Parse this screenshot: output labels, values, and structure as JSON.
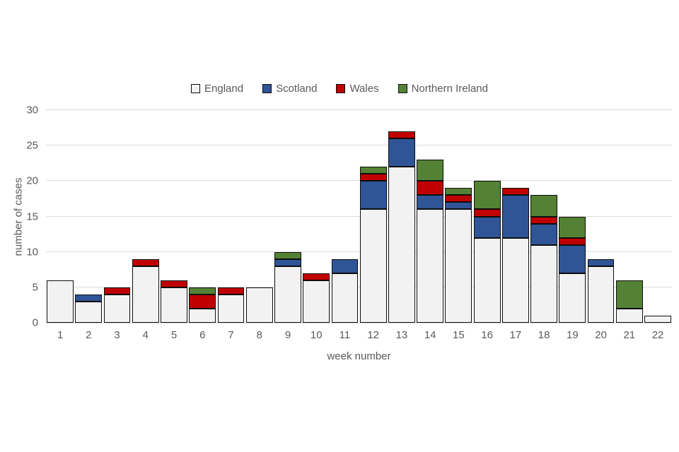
{
  "colors": {
    "text": "#595959",
    "gridline": "#DCDCDC",
    "bar_border": "#0d0d0d",
    "background": "#ffffff",
    "england": "#F2F2F2",
    "scotland": "#2F5597",
    "wales": "#C00000",
    "northern_ireland": "#548235"
  },
  "chart_data": {
    "type": "bar",
    "stacked": true,
    "title": "",
    "xlabel": "week number",
    "ylabel": "number of cases",
    "ylim": [
      0,
      30
    ],
    "yticks": [
      0,
      5,
      10,
      15,
      20,
      25,
      30
    ],
    "grid": true,
    "legend_position": "top",
    "categories": [
      "1",
      "2",
      "3",
      "4",
      "5",
      "6",
      "7",
      "8",
      "9",
      "10",
      "11",
      "12",
      "13",
      "14",
      "15",
      "16",
      "17",
      "18",
      "19",
      "20",
      "21",
      "22"
    ],
    "series": [
      {
        "name": "England",
        "color": "#F2F2F2",
        "values": [
          6,
          3,
          4,
          8,
          5,
          2,
          4,
          5,
          8,
          6,
          7,
          16,
          22,
          16,
          16,
          12,
          12,
          11,
          7,
          8,
          2,
          1
        ]
      },
      {
        "name": "Scotland",
        "color": "#2F5597",
        "values": [
          0,
          1,
          0,
          0,
          0,
          0,
          0,
          0,
          1,
          0,
          2,
          4,
          4,
          2,
          1,
          3,
          6,
          3,
          4,
          1,
          0,
          0
        ]
      },
      {
        "name": "Wales",
        "color": "#C00000",
        "values": [
          0,
          0,
          1,
          1,
          1,
          2,
          1,
          0,
          0,
          1,
          0,
          1,
          1,
          2,
          1,
          1,
          1,
          1,
          1,
          0,
          0,
          0
        ]
      },
      {
        "name": "Northern Ireland",
        "color": "#548235",
        "values": [
          0,
          0,
          0,
          0,
          0,
          1,
          0,
          0,
          1,
          0,
          0,
          1,
          0,
          3,
          1,
          4,
          0,
          3,
          3,
          0,
          4,
          0
        ]
      }
    ],
    "totals": [
      6,
      4,
      5,
      9,
      6,
      5,
      5,
      5,
      10,
      7,
      9,
      22,
      27,
      23,
      19,
      20,
      19,
      18,
      15,
      9,
      6,
      1
    ]
  }
}
